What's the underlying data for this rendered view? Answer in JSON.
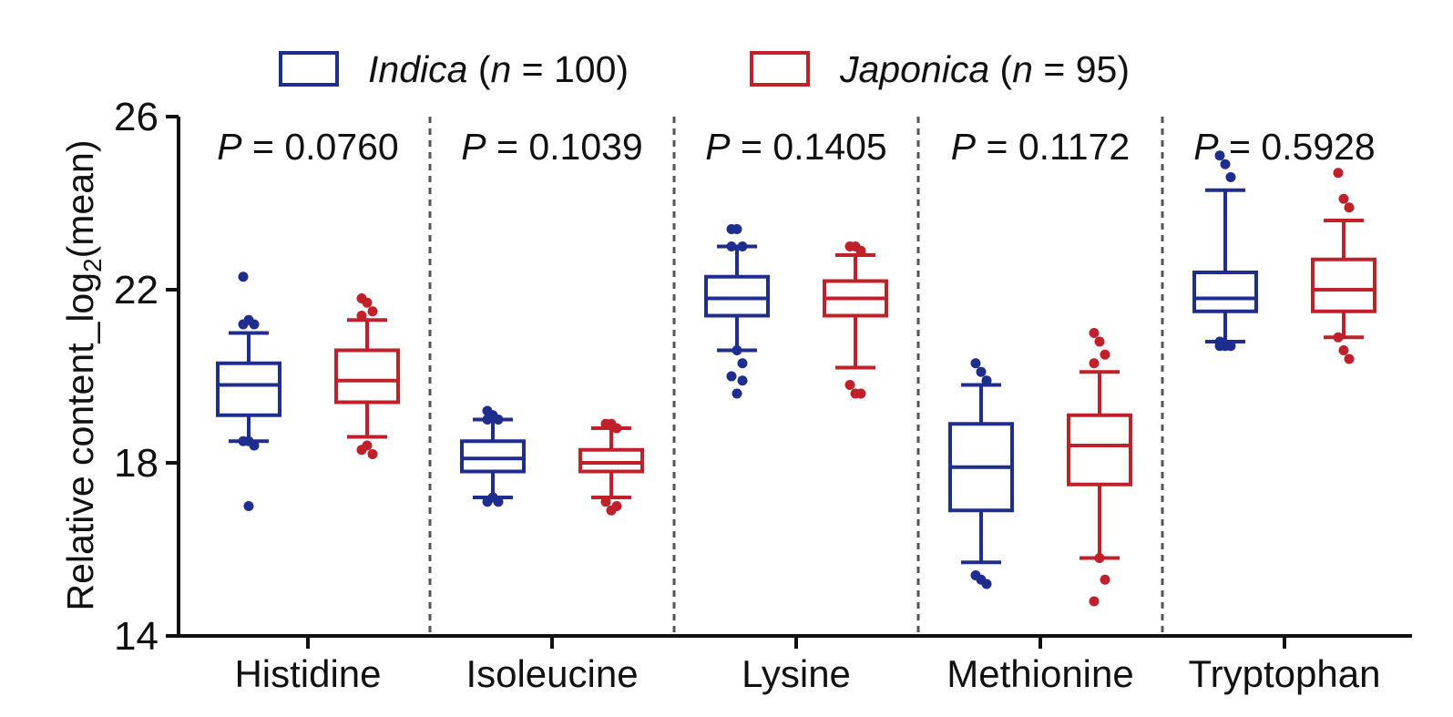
{
  "chart_data": {
    "type": "box",
    "ylabel": {
      "main": "Relative content_log",
      "sub": "2",
      "tail": "(mean)"
    },
    "ylim": [
      14,
      26
    ],
    "yticks": [
      14,
      18,
      22,
      26
    ],
    "categories": [
      "Histidine",
      "Isoleucine",
      "Lysine",
      "Methionine",
      "Tryptophan"
    ],
    "p_values": [
      {
        "prefix": "P",
        "text": " = 0.0760"
      },
      {
        "prefix": "P",
        "text": " = 0.1039"
      },
      {
        "prefix": "P",
        "text": " = 0.1405"
      },
      {
        "prefix": "P",
        "text": " = 0.1172"
      },
      {
        "prefix": "P",
        "text": " = 0.5928"
      }
    ],
    "legend": [
      {
        "name_italic": "Indica",
        "paren_open": " (",
        "n_italic": "n",
        "rest": " = 100)",
        "color": "#1f2d8f"
      },
      {
        "name_italic": "Japonica",
        "paren_open": " (",
        "n_italic": "n",
        "rest": " = 95)",
        "color": "#c0202a"
      }
    ],
    "series": [
      {
        "name": "Indica (n = 100)",
        "color": "#1f2d8f",
        "boxes": [
          {
            "q1": 19.1,
            "median": 19.8,
            "q3": 20.3,
            "whisker_low": 18.5,
            "whisker_high": 21.0,
            "outliers": [
              22.3,
              21.3,
              21.2,
              21.2,
              18.5,
              18.4,
              18.5,
              17.0
            ]
          },
          {
            "q1": 17.8,
            "median": 18.1,
            "q3": 18.5,
            "whisker_low": 17.2,
            "whisker_high": 19.0,
            "outliers": [
              19.2,
              19.1,
              19.0,
              19.0,
              17.2,
              17.1,
              17.1,
              17.2
            ]
          },
          {
            "q1": 21.4,
            "median": 21.8,
            "q3": 22.3,
            "whisker_low": 20.6,
            "whisker_high": 23.0,
            "outliers": [
              23.4,
              23.4,
              23.0,
              23.0,
              20.6,
              20.3,
              20.0,
              19.6,
              19.9
            ]
          },
          {
            "q1": 16.9,
            "median": 17.9,
            "q3": 18.9,
            "whisker_low": 15.7,
            "whisker_high": 19.8,
            "outliers": [
              20.3,
              20.1,
              19.9,
              15.4,
              15.3,
              15.2
            ]
          },
          {
            "q1": 21.5,
            "median": 21.8,
            "q3": 22.4,
            "whisker_low": 20.8,
            "whisker_high": 24.3,
            "outliers": [
              25.1,
              24.9,
              24.6,
              20.8,
              20.7,
              20.7,
              20.7
            ]
          }
        ]
      },
      {
        "name": "Japonica (n = 95)",
        "color": "#c0202a",
        "boxes": [
          {
            "q1": 19.4,
            "median": 19.9,
            "q3": 20.6,
            "whisker_low": 18.6,
            "whisker_high": 21.3,
            "outliers": [
              21.8,
              21.7,
              21.5,
              21.4,
              18.4,
              18.2,
              18.3
            ]
          },
          {
            "q1": 17.8,
            "median": 18.0,
            "q3": 18.3,
            "whisker_low": 17.2,
            "whisker_high": 18.8,
            "outliers": [
              18.9,
              18.9,
              18.8,
              17.1,
              16.9,
              17.0
            ]
          },
          {
            "q1": 21.4,
            "median": 21.8,
            "q3": 22.2,
            "whisker_low": 20.2,
            "whisker_high": 22.8,
            "outliers": [
              23.0,
              23.0,
              22.9,
              19.8,
              19.6,
              19.6
            ]
          },
          {
            "q1": 17.5,
            "median": 18.4,
            "q3": 19.1,
            "whisker_low": 15.8,
            "whisker_high": 20.1,
            "outliers": [
              21.0,
              20.8,
              20.5,
              20.3,
              15.8,
              15.3,
              14.8
            ]
          },
          {
            "q1": 21.5,
            "median": 22.0,
            "q3": 22.7,
            "whisker_low": 20.9,
            "whisker_high": 23.6,
            "outliers": [
              24.7,
              24.1,
              23.9,
              20.9,
              20.6,
              20.4
            ]
          }
        ]
      }
    ]
  }
}
